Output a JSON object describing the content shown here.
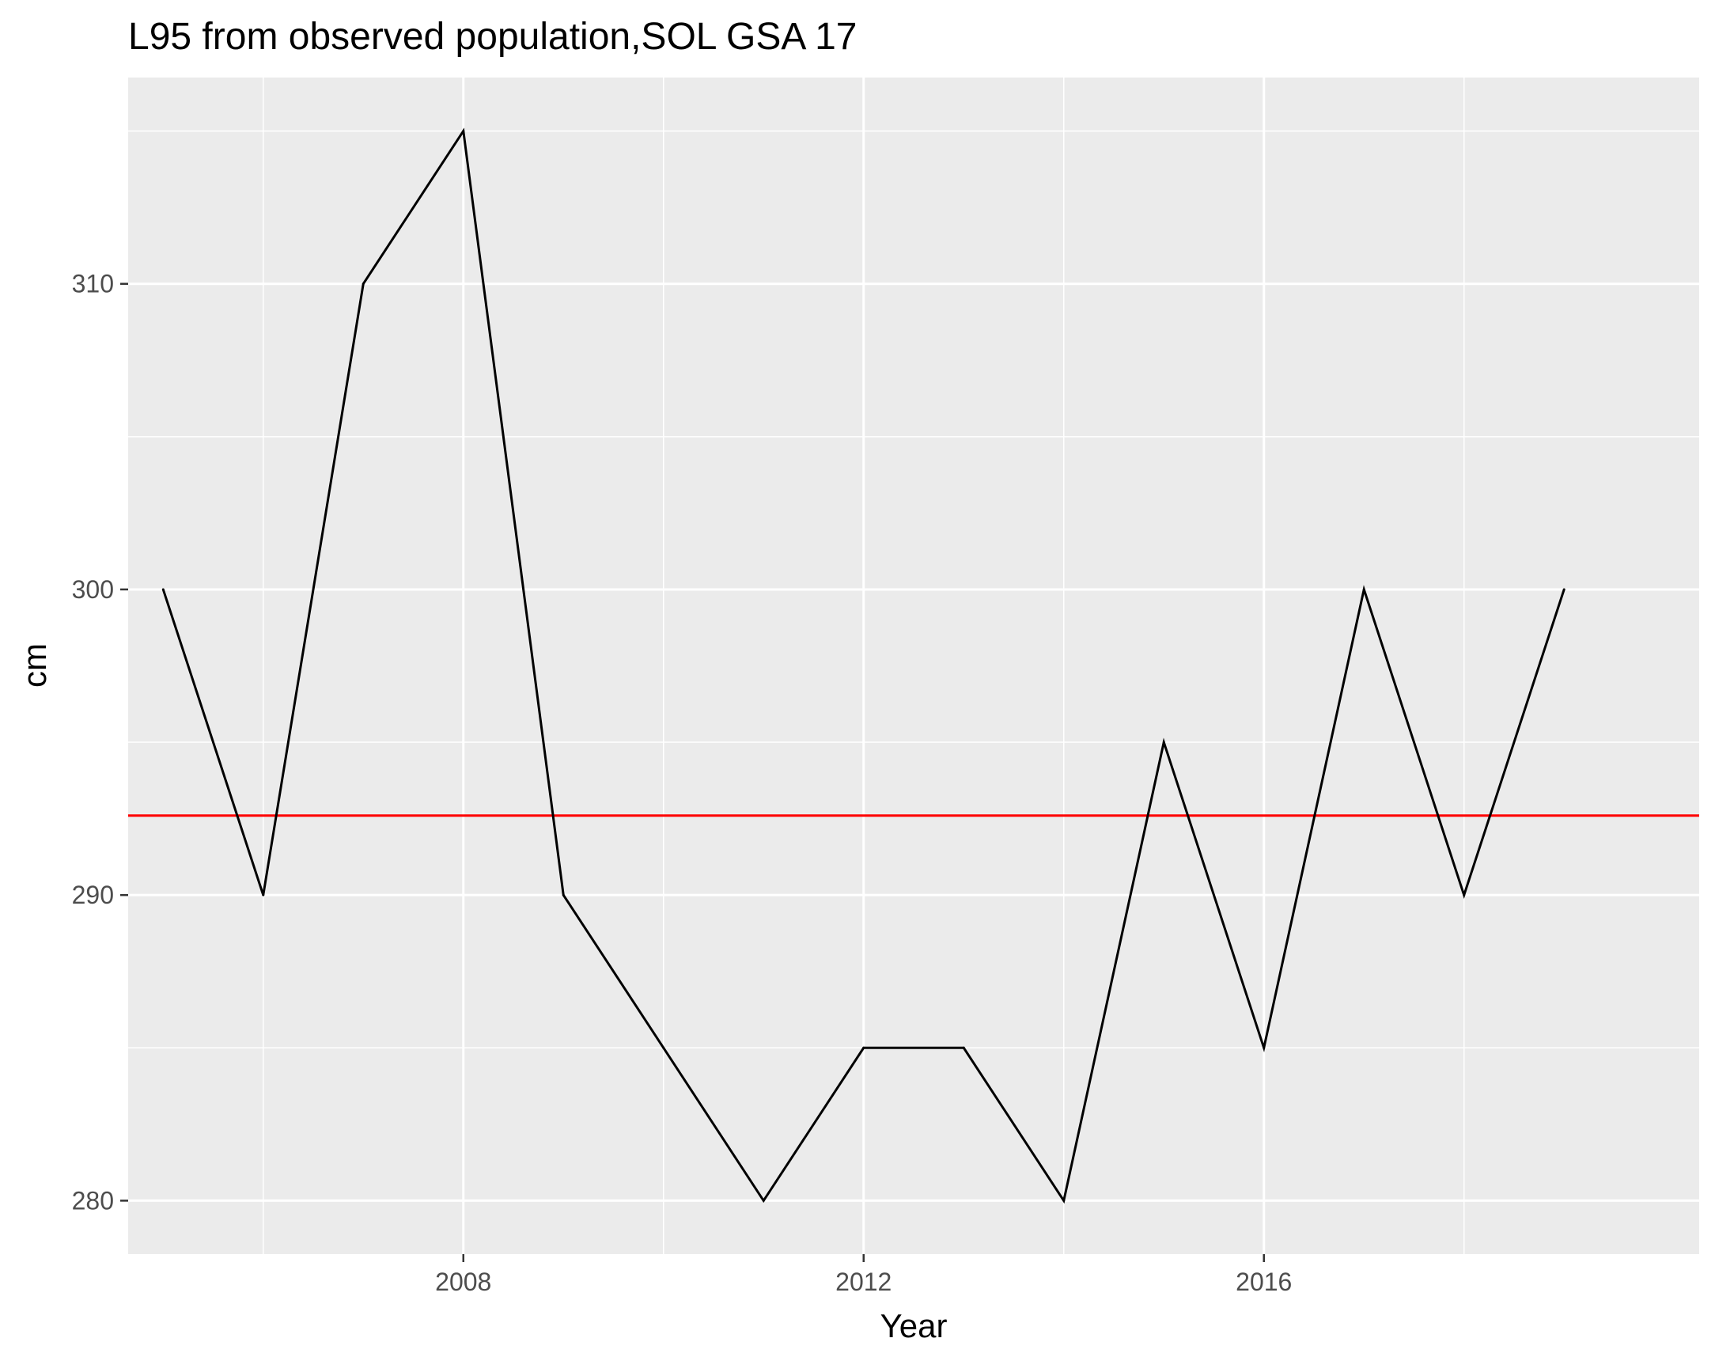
{
  "chart_data": {
    "type": "line",
    "title": "L95 from observed population,SOL GSA 17",
    "xlabel": "Year",
    "ylabel": "cm",
    "xlim": [
      2004.65,
      2020.35
    ],
    "ylim": [
      278.25,
      316.75
    ],
    "x_ticks": [
      2008,
      2012,
      2016
    ],
    "y_ticks": [
      280,
      290,
      300,
      310
    ],
    "grid": true,
    "series": [
      {
        "x": [
          2005,
          2006,
          2007,
          2008,
          2009,
          2010,
          2011,
          2012,
          2013,
          2014,
          2015,
          2016,
          2017,
          2018,
          2019
        ],
        "y": [
          300,
          290,
          310,
          315,
          290,
          285,
          280,
          285,
          285,
          280,
          295,
          285,
          300,
          290,
          300
        ],
        "color": "#000000"
      }
    ],
    "reference_line": {
      "orientation": "horizontal",
      "y": 292.6,
      "color": "#FF0000"
    },
    "colors": {
      "panel_background": "#EBEBEB",
      "gridline": "#FFFFFF",
      "axis_tick": "#333333"
    }
  }
}
